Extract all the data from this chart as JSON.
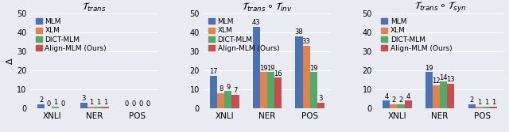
{
  "panels": [
    {
      "title": "$\\mathcal{T}_{trans}$",
      "groups": [
        "XNLI",
        "NER",
        "POS"
      ],
      "values": {
        "MLM": [
          2,
          3,
          0
        ],
        "XLM": [
          0,
          1,
          0
        ],
        "DICT-MLM": [
          1,
          1,
          0
        ],
        "Align-MLM (Ours)": [
          0,
          1,
          0
        ]
      }
    },
    {
      "title": "$\\mathcal{T}_{trans} \\circ \\mathcal{T}_{inv}$",
      "groups": [
        "XNLI",
        "NER",
        "POS"
      ],
      "values": {
        "MLM": [
          17,
          43,
          38
        ],
        "XLM": [
          8,
          19,
          33
        ],
        "DICT-MLM": [
          9,
          19,
          19
        ],
        "Align-MLM (Ours)": [
          7,
          16,
          3
        ]
      }
    },
    {
      "title": "$\\mathcal{T}_{trans} \\circ \\mathcal{T}_{syn}$",
      "groups": [
        "XNLI",
        "NER",
        "POS"
      ],
      "values": {
        "MLM": [
          4,
          19,
          2
        ],
        "XLM": [
          2,
          12,
          1
        ],
        "DICT-MLM": [
          2,
          14,
          1
        ],
        "Align-MLM (Ours)": [
          4,
          13,
          1
        ]
      }
    }
  ],
  "series_names": [
    "MLM",
    "XLM",
    "DICT-MLM",
    "Align-MLM (Ours)"
  ],
  "colors": [
    "#4c72b0",
    "#dd8452",
    "#55a868",
    "#c44e52"
  ],
  "ylim": [
    0,
    50
  ],
  "yticks": [
    0,
    10,
    20,
    30,
    40,
    50
  ],
  "ylabel": "$\\Delta$",
  "bg_color": "#eaeaf2",
  "bar_width": 0.17,
  "legend_fontsize": 6.5,
  "tick_fontsize": 7,
  "title_fontsize": 9,
  "label_fontsize": 6.0,
  "xlabel_fontsize": 7.5
}
